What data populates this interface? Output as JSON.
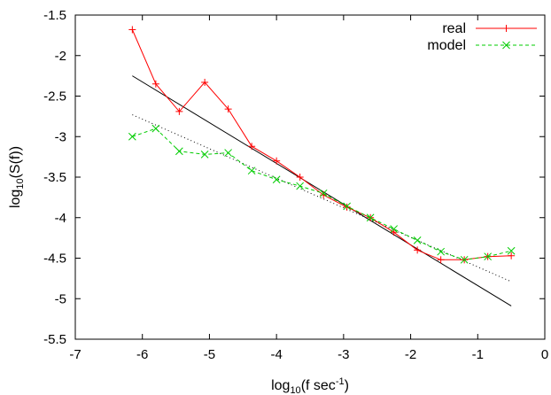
{
  "chart_data": {
    "type": "line",
    "xlabel": {
      "pre": "log",
      "sub": "10",
      "mid": "(f sec",
      "sup": "-1",
      "post": ")"
    },
    "ylabel": {
      "pre": "log",
      "sub": "10",
      "post": "(S(f))"
    },
    "xlim": [
      -7,
      0
    ],
    "ylim": [
      -5.5,
      -1.5
    ],
    "xticks": [
      -7,
      -6,
      -5,
      -4,
      -3,
      -2,
      -1,
      0
    ],
    "yticks": [
      -1.5,
      -2,
      -2.5,
      -3,
      -3.5,
      -4,
      -4.5,
      -5,
      -5.5
    ],
    "grid": false,
    "legend": {
      "position": "top-right"
    },
    "series": [
      {
        "name": "real",
        "color": "#ff0000",
        "style": "solid",
        "marker": "plus",
        "x": [
          -6.15,
          -5.8,
          -5.45,
          -5.07,
          -4.72,
          -4.37,
          -4.0,
          -3.65,
          -3.3,
          -2.95,
          -2.6,
          -2.25,
          -1.9,
          -1.55,
          -1.2,
          -0.85,
          -0.5
        ],
        "y": [
          -1.68,
          -2.35,
          -2.69,
          -2.33,
          -2.66,
          -3.12,
          -3.3,
          -3.5,
          -3.72,
          -3.87,
          -4.0,
          -4.18,
          -4.4,
          -4.52,
          -4.52,
          -4.48,
          -4.47
        ]
      },
      {
        "name": "model",
        "color": "#00cc00",
        "style": "dashed",
        "marker": "cross",
        "x": [
          -6.15,
          -5.8,
          -5.45,
          -5.07,
          -4.72,
          -4.37,
          -4.0,
          -3.65,
          -3.3,
          -2.95,
          -2.6,
          -2.25,
          -1.9,
          -1.55,
          -1.2,
          -0.85,
          -0.5
        ],
        "y": [
          -3.0,
          -2.9,
          -3.18,
          -3.22,
          -3.2,
          -3.42,
          -3.53,
          -3.61,
          -3.7,
          -3.86,
          -4.0,
          -4.14,
          -4.28,
          -4.42,
          -4.52,
          -4.48,
          -4.41
        ]
      }
    ],
    "fit_lines": [
      {
        "color": "#000000",
        "style": "solid",
        "x": [
          -6.15,
          -0.5
        ],
        "y": [
          -2.25,
          -5.09
        ]
      },
      {
        "color": "#000000",
        "style": "dotted",
        "x": [
          -6.15,
          -0.5
        ],
        "y": [
          -2.73,
          -4.79
        ]
      }
    ]
  }
}
